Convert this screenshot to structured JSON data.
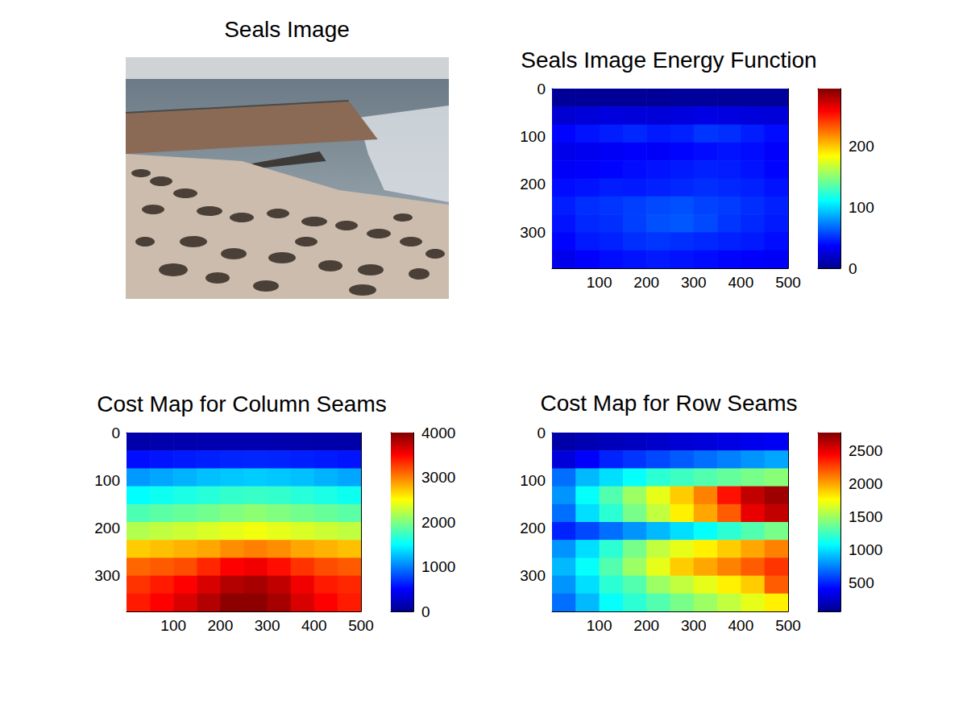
{
  "chart_data": [
    {
      "type": "image",
      "title": "Seals Image"
    },
    {
      "type": "heatmap",
      "title": "Seals Image Energy Function",
      "xlim": [
        0,
        500
      ],
      "xticks": [
        100,
        200,
        300,
        400,
        500
      ],
      "ylim": [
        375,
        0
      ],
      "yticks": [
        0,
        100,
        200,
        300
      ],
      "x_edges": [
        0,
        50,
        100,
        150,
        200,
        250,
        300,
        350,
        400,
        450,
        500
      ],
      "y_edges": [
        0,
        37.5,
        75,
        112.5,
        150,
        187.5,
        225,
        262.5,
        300,
        337.5,
        375
      ],
      "cells": [
        [
          3,
          3,
          3,
          3,
          3,
          4,
          4,
          4,
          4,
          4
        ],
        [
          22,
          24,
          26,
          25,
          24,
          26,
          28,
          27,
          25,
          24
        ],
        [
          38,
          42,
          45,
          48,
          44,
          46,
          52,
          50,
          45,
          40
        ],
        [
          30,
          32,
          34,
          36,
          35,
          38,
          40,
          42,
          40,
          36
        ],
        [
          35,
          36,
          38,
          40,
          42,
          44,
          46,
          45,
          42,
          38
        ],
        [
          40,
          42,
          45,
          44,
          46,
          48,
          50,
          48,
          46,
          42
        ],
        [
          45,
          50,
          52,
          55,
          58,
          60,
          56,
          54,
          50,
          46
        ],
        [
          42,
          48,
          50,
          55,
          60,
          62,
          58,
          52,
          48,
          44
        ],
        [
          38,
          44,
          46,
          50,
          52,
          50,
          48,
          46,
          44,
          40
        ],
        [
          30,
          36,
          40,
          42,
          44,
          42,
          40,
          38,
          36,
          34
        ]
      ],
      "colorbar": {
        "range": [
          0,
          295
        ],
        "ticks": [
          0,
          100,
          200
        ]
      }
    },
    {
      "type": "heatmap",
      "title": "Cost Map for Column Seams",
      "xlim": [
        0,
        500
      ],
      "xticks": [
        100,
        200,
        300,
        400,
        500
      ],
      "ylim": [
        375,
        0
      ],
      "yticks": [
        0,
        100,
        200,
        300
      ],
      "x_edges": [
        0,
        50,
        100,
        150,
        200,
        250,
        300,
        350,
        400,
        450,
        500
      ],
      "y_edges": [
        0,
        37.5,
        75,
        112.5,
        150,
        187.5,
        225,
        262.5,
        300,
        337.5,
        375
      ],
      "cells": [
        [
          120,
          130,
          140,
          150,
          150,
          150,
          140,
          130,
          120,
          110
        ],
        [
          550,
          580,
          600,
          620,
          640,
          650,
          640,
          620,
          600,
          580
        ],
        [
          1100,
          1150,
          1200,
          1250,
          1280,
          1300,
          1280,
          1250,
          1200,
          1150
        ],
        [
          1500,
          1550,
          1600,
          1650,
          1700,
          1720,
          1700,
          1650,
          1600,
          1550
        ],
        [
          1800,
          1850,
          1900,
          1950,
          2000,
          2050,
          2000,
          1950,
          1900,
          1850
        ],
        [
          2200,
          2250,
          2300,
          2350,
          2400,
          2450,
          2400,
          2350,
          2300,
          2250
        ],
        [
          2700,
          2750,
          2800,
          2850,
          2950,
          3000,
          2950,
          2850,
          2800,
          2750
        ],
        [
          3100,
          3150,
          3200,
          3350,
          3500,
          3550,
          3450,
          3300,
          3200,
          3150
        ],
        [
          3300,
          3400,
          3500,
          3650,
          3800,
          3850,
          3750,
          3550,
          3400,
          3350
        ],
        [
          3400,
          3500,
          3650,
          3800,
          3950,
          3950,
          3850,
          3650,
          3500,
          3400
        ]
      ],
      "colorbar": {
        "range": [
          0,
          4000
        ],
        "ticks": [
          0,
          1000,
          2000,
          3000,
          4000
        ]
      }
    },
    {
      "type": "heatmap",
      "title": "Cost Map for Row Seams",
      "xlim": [
        0,
        500
      ],
      "xticks": [
        100,
        200,
        300,
        400,
        500
      ],
      "ylim": [
        375,
        0
      ],
      "yticks": [
        0,
        100,
        200,
        300
      ],
      "x_edges": [
        0,
        50,
        100,
        150,
        200,
        250,
        300,
        350,
        400,
        450,
        500
      ],
      "y_edges": [
        0,
        37.5,
        75,
        112.5,
        150,
        187.5,
        225,
        262.5,
        300,
        337.5,
        375
      ],
      "cells": [
        [
          150,
          180,
          200,
          220,
          250,
          280,
          300,
          320,
          350,
          380
        ],
        [
          300,
          400,
          500,
          550,
          600,
          650,
          700,
          750,
          800,
          850
        ],
        [
          700,
          900,
          1000,
          1100,
          1200,
          1250,
          1300,
          1350,
          1400,
          1450
        ],
        [
          800,
          1100,
          1300,
          1500,
          1700,
          1900,
          2100,
          2400,
          2600,
          2700
        ],
        [
          700,
          1000,
          1200,
          1400,
          1600,
          1800,
          2000,
          2200,
          2500,
          2600
        ],
        [
          500,
          600,
          700,
          800,
          900,
          1000,
          1100,
          1200,
          1300,
          1400
        ],
        [
          800,
          1000,
          1200,
          1400,
          1600,
          1700,
          1800,
          1900,
          2000,
          2100
        ],
        [
          900,
          1100,
          1300,
          1500,
          1700,
          1900,
          2000,
          2100,
          2200,
          2300
        ],
        [
          800,
          1000,
          1200,
          1300,
          1500,
          1600,
          1700,
          1800,
          1900,
          2200
        ],
        [
          700,
          900,
          1100,
          1200,
          1300,
          1400,
          1500,
          1600,
          1700,
          1800
        ]
      ],
      "colorbar": {
        "range": [
          70,
          2780
        ],
        "ticks": [
          500,
          1000,
          1500,
          2000,
          2500
        ]
      }
    }
  ]
}
